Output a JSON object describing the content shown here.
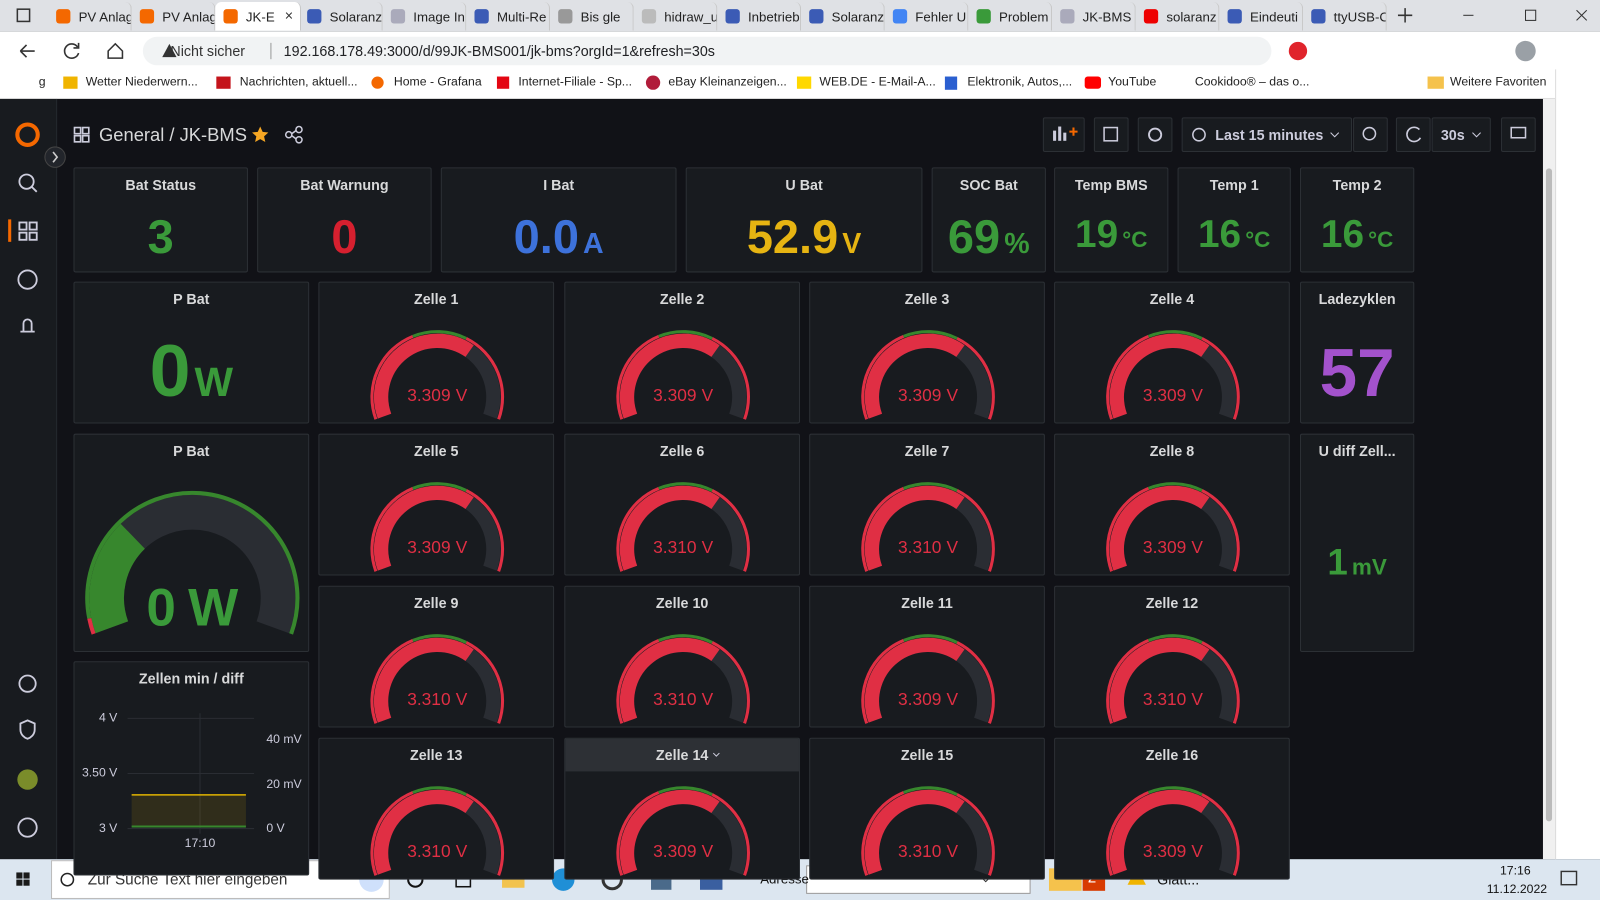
{
  "browser": {
    "tabs": [
      "PV Anlag",
      "PV Anlag",
      "JK-E",
      "Solaranz",
      "Image In",
      "Multi-Re",
      "Bis gle",
      "hidraw_u",
      "Inbetrieb",
      "Solaranz",
      "Fehler U",
      "Problem",
      "JK-BMS",
      "solaranz",
      "Eindeuti",
      "ttyUSB-C"
    ],
    "security": "Nicht sicher",
    "url": "192.168.178.49:3000/d/99JK-BMS001/jk-bms?orgId=1&refresh=30s",
    "favorites": [
      "g",
      "Wetter Niederwern...",
      "Nachrichten, aktuell...",
      "Home - Grafana",
      "Internet-Filiale - Sp...",
      "eBay Kleinanzeigen...",
      "WEB.DE - E-Mail-A...",
      "Elektronik, Autos,...",
      "YouTube",
      "Cookidoo® – das o...",
      "Weitere Favoriten"
    ]
  },
  "dashboard": {
    "folder": "General",
    "title": "/ JK-BMS",
    "time_range": "Last 15 minutes",
    "refresh": "30s",
    "stats": [
      {
        "title": "Bat Status",
        "value": "3",
        "color": "#3a9a3a"
      },
      {
        "title": "Bat Warnung",
        "value": "0",
        "color": "#d6202f"
      },
      {
        "title": "I Bat",
        "value": "0.0",
        "unit": "A",
        "color": "#3d72db"
      },
      {
        "title": "U Bat",
        "value": "52.9",
        "unit": "V",
        "color": "#e6b412"
      },
      {
        "title": "SOC Bat",
        "value": "69",
        "unit": "%",
        "color": "#3a9a3a"
      },
      {
        "title": "Temp BMS",
        "value": "19",
        "unit": "°C",
        "color": "#3a9a3a"
      },
      {
        "title": "Temp 1",
        "value": "16",
        "unit": "°C",
        "color": "#3a9a3a"
      },
      {
        "title": "Temp 2",
        "value": "16",
        "unit": "°C",
        "color": "#3a9a3a"
      }
    ],
    "power_stat": {
      "title": "P Bat",
      "value": "0",
      "unit": "W",
      "color": "#3a9a3a"
    },
    "power_gauge": {
      "title": "P Bat",
      "value": "0",
      "unit": "W",
      "color": "#3a9a3a"
    },
    "cycles": {
      "title": "Ladezyklen",
      "value": "57",
      "color": "#a352cc"
    },
    "cell_diff": {
      "title": "U diff Zell...",
      "value": "1",
      "unit": "mV",
      "color": "#3a9a3a"
    },
    "cells": [
      {
        "title": "Zelle 1",
        "value": "3.309",
        "unit": "V"
      },
      {
        "title": "Zelle 2",
        "value": "3.309",
        "unit": "V"
      },
      {
        "title": "Zelle 3",
        "value": "3.309",
        "unit": "V"
      },
      {
        "title": "Zelle 4",
        "value": "3.309",
        "unit": "V"
      },
      {
        "title": "Zelle 5",
        "value": "3.309",
        "unit": "V"
      },
      {
        "title": "Zelle 6",
        "value": "3.310",
        "unit": "V"
      },
      {
        "title": "Zelle 7",
        "value": "3.310",
        "unit": "V"
      },
      {
        "title": "Zelle 8",
        "value": "3.309",
        "unit": "V"
      },
      {
        "title": "Zelle 9",
        "value": "3.310",
        "unit": "V"
      },
      {
        "title": "Zelle 10",
        "value": "3.310",
        "unit": "V"
      },
      {
        "title": "Zelle 11",
        "value": "3.309",
        "unit": "V"
      },
      {
        "title": "Zelle 12",
        "value": "3.310",
        "unit": "V"
      },
      {
        "title": "Zelle 13",
        "value": "3.310",
        "unit": "V"
      },
      {
        "title": "Zelle 14",
        "value": "3.309",
        "unit": "V"
      },
      {
        "title": "Zelle 15",
        "value": "3.310",
        "unit": "V"
      },
      {
        "title": "Zelle 16",
        "value": "3.309",
        "unit": "V"
      }
    ],
    "timeseries": {
      "title": "Zellen min / diff",
      "left_ticks": [
        "4 V",
        "3.50 V",
        "3 V"
      ],
      "right_ticks": [
        "40 mV",
        "20 mV",
        "0 V"
      ],
      "x_ticks": [
        "17:10"
      ]
    }
  },
  "taskbar": {
    "search": "Zur Suche Text hier eingeben",
    "address_label": "Adresse",
    "mail_count": "2",
    "weather": "Glatt...",
    "time": "17:16",
    "date": "11.12.2022"
  }
}
